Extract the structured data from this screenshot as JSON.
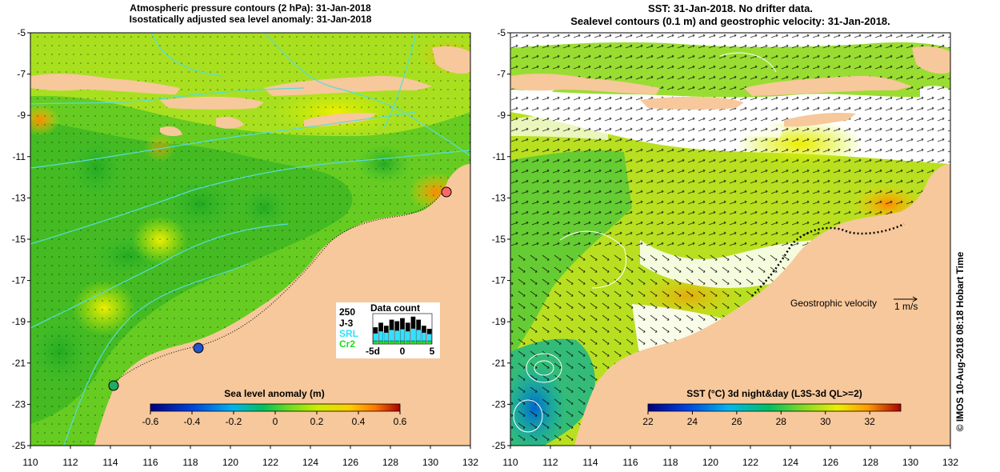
{
  "left_panel": {
    "title_line1": "Atmospheric pressure contours (2 hPa): 31-Jan-2018",
    "title_line2": "Isostatically adjusted sea level anomaly: 31-Jan-2018",
    "colorbar": {
      "title": "Sea level anomaly (m)",
      "ticks": [
        "-0.6",
        "-0.4",
        "-0.2",
        "0",
        "0.2",
        "0.4",
        "0.6"
      ],
      "range": [
        -0.6,
        0.6
      ]
    },
    "data_count": {
      "title": "Data count",
      "max_label": "250",
      "legend": [
        {
          "label": "J-3",
          "color": "#000000"
        },
        {
          "label": "SRL",
          "color": "#33e0ff"
        },
        {
          "label": "Cr2",
          "color": "#22dd22"
        }
      ],
      "x_labels": [
        "-5d",
        "0",
        "5"
      ]
    }
  },
  "right_panel": {
    "title_line1": "SST: 31-Jan-2018. No drifter data.",
    "title_line2": "Sealevel contours (0.1 m) and geostrophic velocity: 31-Jan-2018.",
    "velocity_label": "Geostrophic velocity",
    "velocity_scale": "1 m/s",
    "colorbar": {
      "title": "SST (°C) 3d night&day (L3S-3d QL>=2)",
      "ticks": [
        "22",
        "24",
        "26",
        "28",
        "30",
        "32"
      ],
      "range": [
        22,
        33.4
      ]
    }
  },
  "axes": {
    "y_ticks": [
      "-5",
      "-7",
      "-9",
      "-11",
      "-13",
      "-15",
      "-17",
      "-19",
      "-21",
      "-23",
      "-25"
    ],
    "x_ticks": [
      "110",
      "112",
      "114",
      "116",
      "118",
      "120",
      "122",
      "124",
      "126",
      "128",
      "130",
      "132"
    ],
    "lon_range": [
      110,
      132
    ],
    "lat_range": [
      -25,
      -5
    ]
  },
  "credit": "© IMOS 10-Aug-2018 08:18 Hobart Time",
  "colors": {
    "land": "#f7c89b",
    "contour": "#55dddd",
    "coast_dots": "#000000"
  }
}
